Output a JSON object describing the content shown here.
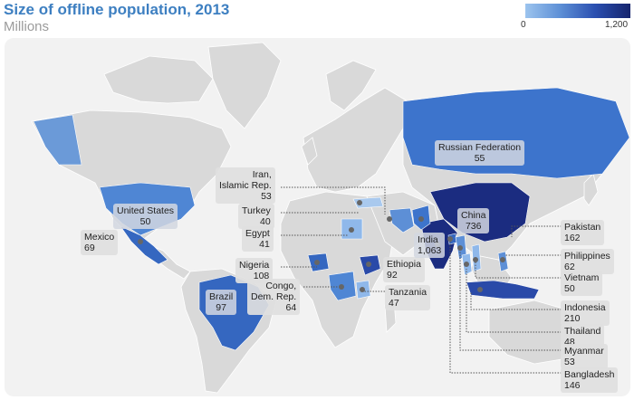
{
  "title": "Size of offline population, 2013",
  "subtitle": "Millions",
  "legend": {
    "min": "0",
    "max": "1,200",
    "colors": [
      "#9cc4ee",
      "#16246d"
    ]
  },
  "labels": {
    "russia": {
      "name": "Russian Federation",
      "value": "55"
    },
    "iran": {
      "name_1": "Iran,",
      "name_2": "Islamic Rep.",
      "value": "53"
    },
    "turkey": {
      "name": "Turkey",
      "value": "40"
    },
    "egypt": {
      "name": "Egypt",
      "value": "41"
    },
    "nigeria": {
      "name": "Nigeria",
      "value": "108"
    },
    "congo": {
      "name_1": "Congo,",
      "name_2": "Dem. Rep.",
      "value": "64"
    },
    "ethiopia": {
      "name": "Ethiopia",
      "value": "92"
    },
    "tanzania": {
      "name": "Tanzania",
      "value": "47"
    },
    "usa": {
      "name": "United States",
      "value": "50"
    },
    "mexico": {
      "name": "Mexico",
      "value": "69"
    },
    "brazil": {
      "name": "Brazil",
      "value": "97"
    },
    "china": {
      "name": "China",
      "value": "736"
    },
    "india": {
      "name": "India",
      "value": "1,063"
    },
    "pakistan": {
      "name": "Pakistan",
      "value": "162"
    },
    "philippines": {
      "name": "Philippines",
      "value": "62"
    },
    "vietnam": {
      "name": "Vietnam",
      "value": "50"
    },
    "indonesia": {
      "name": "Indonesia",
      "value": "210"
    },
    "thailand": {
      "name": "Thailand",
      "value": "48"
    },
    "myanmar": {
      "name": "Myanmar",
      "value": "53"
    },
    "bangladesh": {
      "name": "Bangladesh",
      "value": "146"
    }
  },
  "highlight_colors": {
    "light": "#a9c9ee",
    "mid": "#4f86d4",
    "midDark": "#3567c0",
    "dark": "#2a4aa8",
    "darkest": "#1b2c80"
  }
}
